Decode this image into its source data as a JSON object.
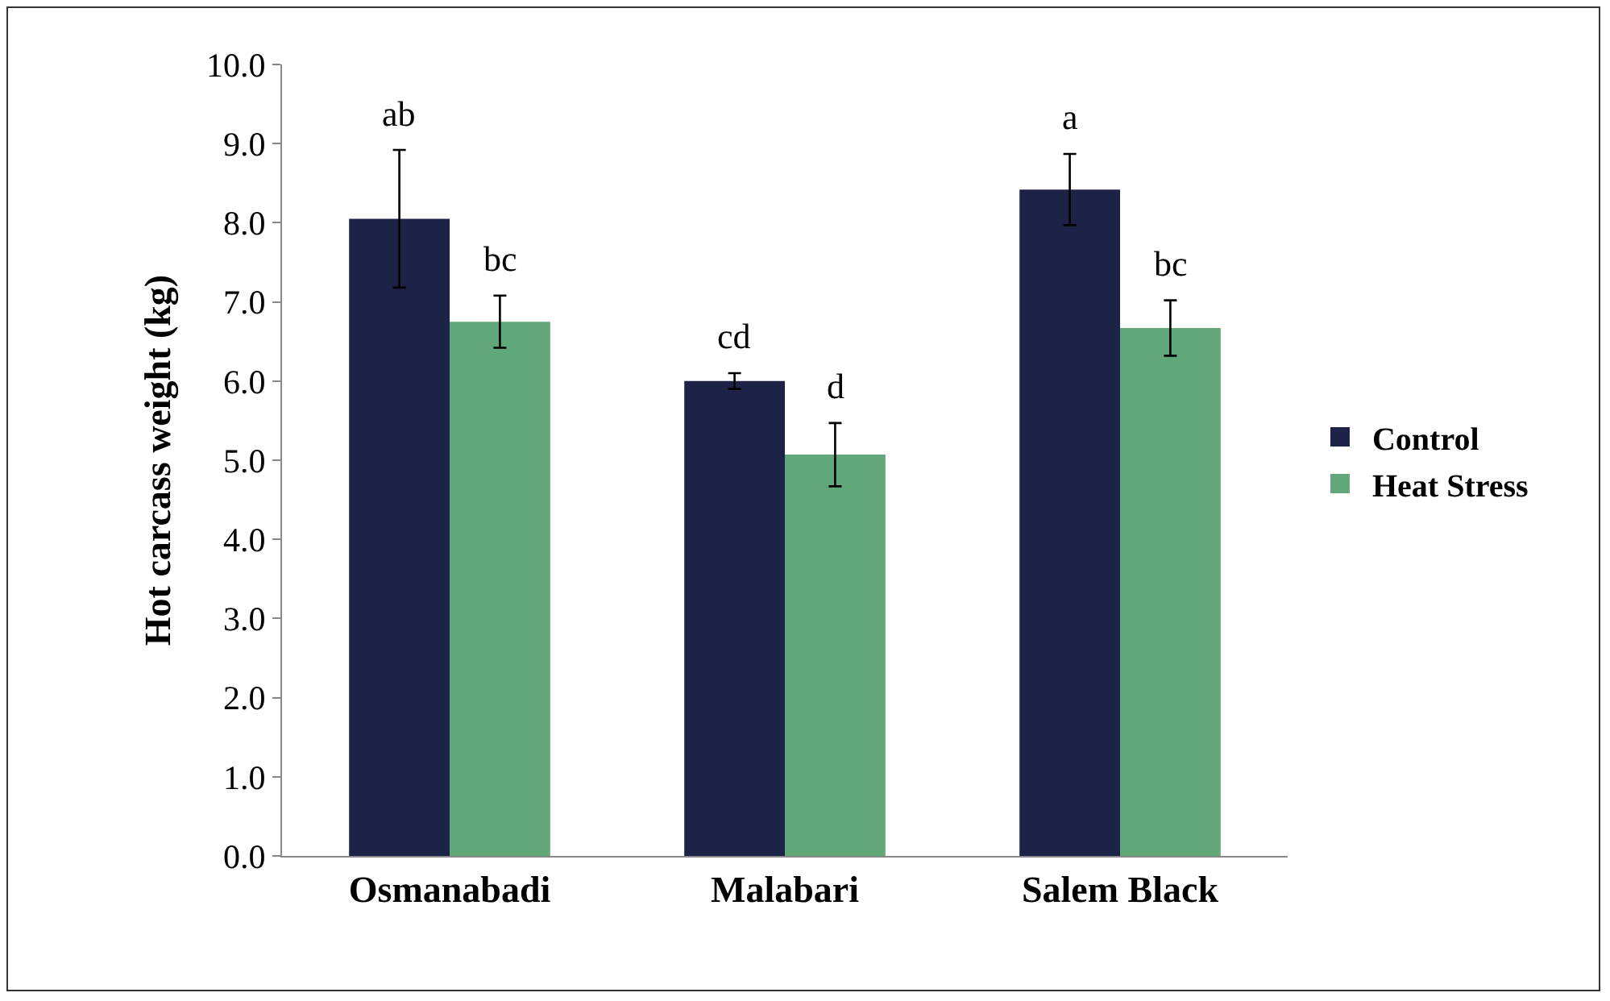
{
  "chart_data": {
    "type": "bar",
    "ylabel": "Hot carcass weight (kg)",
    "categories": [
      "Osmanabadi",
      "Malabari",
      "Salem Black"
    ],
    "series": [
      {
        "name": "Control",
        "color": "#1c2347",
        "values": [
          8.05,
          6.0,
          8.42
        ],
        "errors": [
          0.87,
          0.1,
          0.45
        ],
        "value_labels": [
          "ab",
          "cd",
          "a"
        ]
      },
      {
        "name": "Heat Stress",
        "color": "#60a87a",
        "values": [
          6.75,
          5.07,
          6.67
        ],
        "errors": [
          0.33,
          0.4,
          0.35
        ],
        "value_labels": [
          "bc",
          "d",
          "bc"
        ]
      }
    ],
    "ylim": [
      0,
      10
    ],
    "yticks": [
      {
        "value": 0,
        "label": "0.0"
      },
      {
        "value": 1,
        "label": "1.0"
      },
      {
        "value": 2,
        "label": "2.0"
      },
      {
        "value": 3,
        "label": "3.0"
      },
      {
        "value": 4,
        "label": "4.0"
      },
      {
        "value": 5,
        "label": "5.0"
      },
      {
        "value": 6,
        "label": "6.0"
      },
      {
        "value": 7,
        "label": "7.0"
      },
      {
        "value": 8,
        "label": "8.0"
      },
      {
        "value": 9,
        "label": "9.0"
      },
      {
        "value": 10,
        "label": "10.0"
      }
    ],
    "grid": false,
    "legend": "right"
  }
}
